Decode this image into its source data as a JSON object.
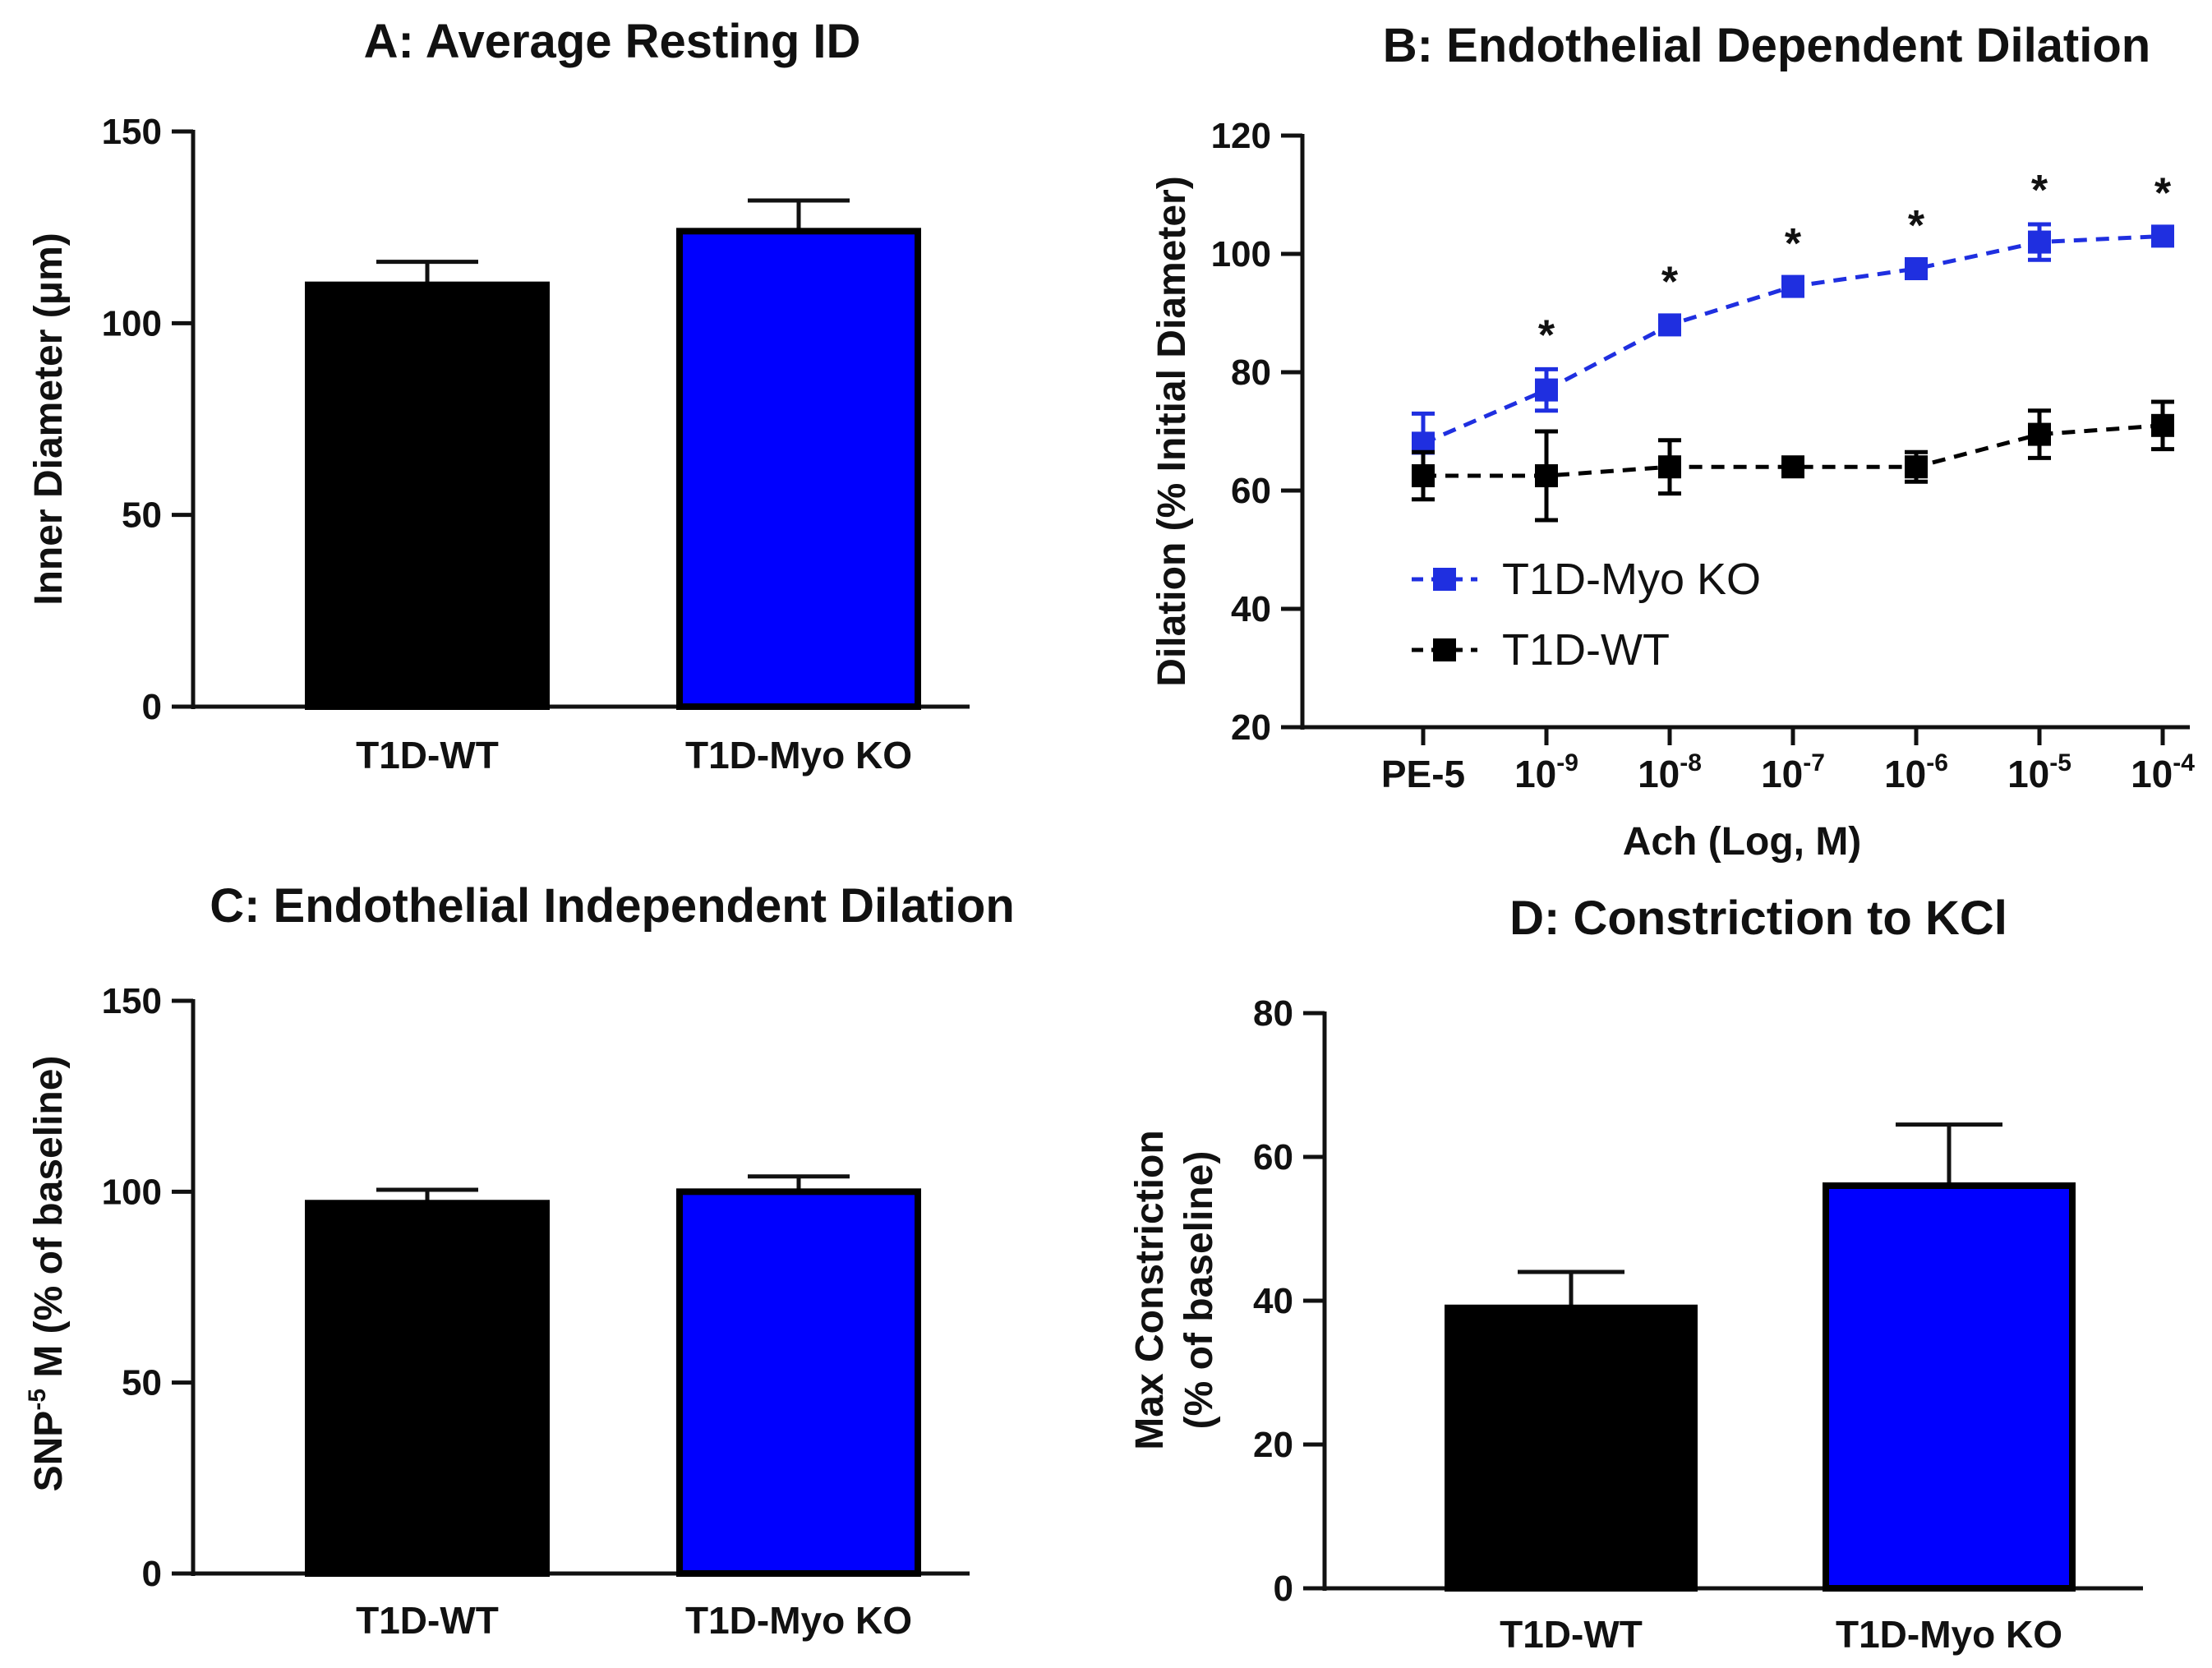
{
  "chart_data": [
    {
      "id": "A",
      "type": "bar",
      "title": "A: Average Resting ID",
      "ylabel": "Inner Diameter (μm)",
      "ylim": [
        0,
        150
      ],
      "yticks": [
        0,
        50,
        100,
        150
      ],
      "categories": [
        "T1D-WT",
        "T1D-Myo KO"
      ],
      "values": [
        110,
        124
      ],
      "errors": [
        6,
        8
      ],
      "colors": [
        "#000000",
        "#0000ff"
      ]
    },
    {
      "id": "B",
      "type": "line",
      "title": "B: Endothelial Dependent Dilation",
      "ylabel": "Dilation (% Initial Diameter)",
      "xlabel": "Ach (Log, M)",
      "ylim": [
        20,
        120
      ],
      "yticks": [
        20,
        40,
        60,
        80,
        100,
        120
      ],
      "categories": [
        {
          "base": "PE-5",
          "exp": ""
        },
        {
          "base": "10",
          "exp": "-9"
        },
        {
          "base": "10",
          "exp": "-8"
        },
        {
          "base": "10",
          "exp": "-7"
        },
        {
          "base": "10",
          "exp": "-6"
        },
        {
          "base": "10",
          "exp": "-5"
        },
        {
          "base": "10",
          "exp": "-4"
        }
      ],
      "series": [
        {
          "name": "T1D-Myo KO",
          "color": "#1f2fe0",
          "values": [
            68,
            77,
            88,
            94.5,
            97.5,
            102,
            103
          ],
          "errors": [
            5,
            3.5,
            1.5,
            1.5,
            1.5,
            3,
            1.5
          ]
        },
        {
          "name": "T1D-WT",
          "color": "#000000",
          "values": [
            62.5,
            62.5,
            64,
            64,
            64,
            69.5,
            71
          ],
          "errors": [
            4,
            7.5,
            4.5,
            1.5,
            2.5,
            4,
            4
          ]
        }
      ],
      "significance": [
        "",
        "*",
        "*",
        "*",
        "*",
        "*",
        "*"
      ]
    },
    {
      "id": "C",
      "type": "bar",
      "title": "C: Endothelial Independent Dilation",
      "ylabel_parts": {
        "pre": "SNP",
        "sup": "-5",
        "post": " M (% of baseline)"
      },
      "ylim": [
        0,
        150
      ],
      "yticks": [
        0,
        50,
        100,
        150
      ],
      "categories": [
        "T1D-WT",
        "T1D-Myo KO"
      ],
      "values": [
        97,
        100
      ],
      "errors": [
        3.5,
        4
      ],
      "colors": [
        "#000000",
        "#0000ff"
      ]
    },
    {
      "id": "D",
      "type": "bar",
      "title": "D: Constriction to KCl",
      "ylabel_lines": [
        "Max Constriction",
        "(% of baseline)"
      ],
      "ylim": [
        0,
        80
      ],
      "yticks": [
        0,
        20,
        40,
        60,
        80
      ],
      "categories": [
        "T1D-WT",
        "T1D-Myo KO"
      ],
      "values": [
        39,
        56
      ],
      "errors": [
        5,
        8.5
      ],
      "colors": [
        "#000000",
        "#0000ff"
      ]
    }
  ]
}
